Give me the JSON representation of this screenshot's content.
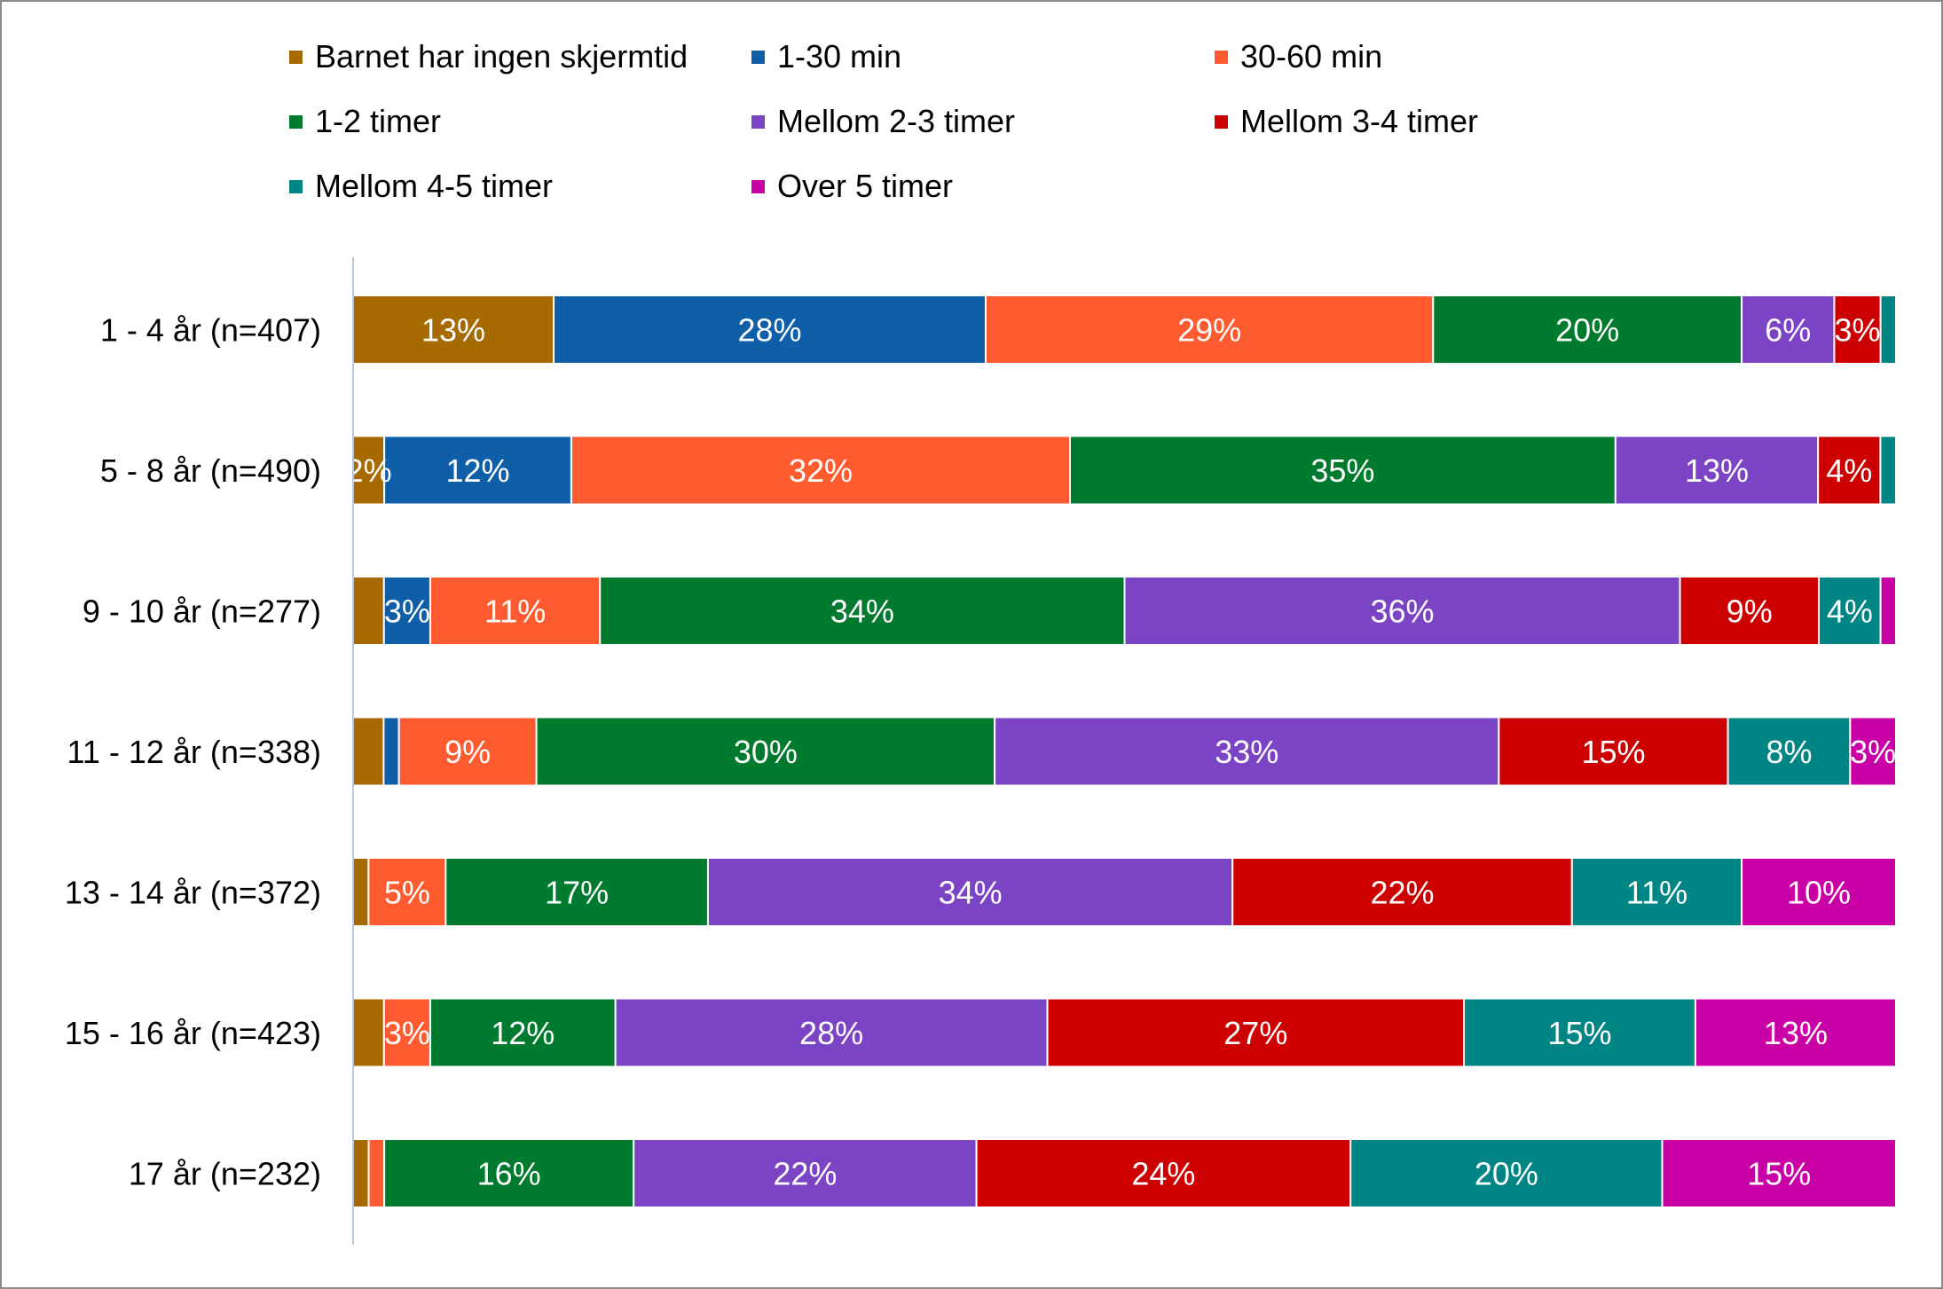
{
  "chart_data": {
    "type": "bar",
    "orientation": "horizontal",
    "stacked": true,
    "normalized": true,
    "xlim": [
      0,
      100
    ],
    "unit": "%",
    "legend_position": "top",
    "categories": [
      "1 - 4 år (n=407)",
      "5 - 8 år (n=490)",
      "9 - 10 år (n=277)",
      "11 - 12 år (n=338)",
      "13 - 14 år (n=372)",
      "15 - 16 år (n=423)",
      "17 år (n=232)"
    ],
    "series": [
      {
        "name": "Barnet har ingen skjermtid",
        "color": "#a66a00",
        "values": [
          13,
          2,
          2,
          2,
          1,
          2,
          1
        ],
        "labels": [
          "13%",
          "2%",
          "",
          "",
          "",
          "",
          ""
        ]
      },
      {
        "name": "1-30 min",
        "color": "#0f5ea8",
        "values": [
          28,
          12,
          3,
          1,
          0,
          0,
          0
        ],
        "labels": [
          "28%",
          "12%",
          "3%",
          "",
          "",
          "",
          ""
        ]
      },
      {
        "name": "30-60 min",
        "color": "#ff5b30",
        "values": [
          29,
          32,
          11,
          9,
          5,
          3,
          1
        ],
        "labels": [
          "29%",
          "32%",
          "11%",
          "9%",
          "5%",
          "3%",
          ""
        ]
      },
      {
        "name": "1-2 timer",
        "color": "#007a2e",
        "values": [
          20,
          35,
          34,
          30,
          17,
          12,
          16
        ],
        "labels": [
          "20%",
          "35%",
          "34%",
          "30%",
          "17%",
          "12%",
          "16%"
        ]
      },
      {
        "name": "Mellom 2-3 timer",
        "color": "#7b44c4",
        "values": [
          6,
          13,
          36,
          33,
          34,
          28,
          22
        ],
        "labels": [
          "6%",
          "13%",
          "36%",
          "33%",
          "34%",
          "28%",
          "22%"
        ]
      },
      {
        "name": "Mellom 3-4 timer",
        "color": "#cc0000",
        "values": [
          3,
          4,
          9,
          15,
          22,
          27,
          24
        ],
        "labels": [
          "3%",
          "4%",
          "9%",
          "15%",
          "22%",
          "27%",
          "24%"
        ]
      },
      {
        "name": "Mellom 4-5 timer",
        "color": "#008585",
        "values": [
          1,
          1,
          4,
          8,
          11,
          15,
          20
        ],
        "labels": [
          "",
          "",
          "4%",
          "8%",
          "11%",
          "15%",
          "20%"
        ]
      },
      {
        "name": "Over 5 timer",
        "color": "#c800a6",
        "values": [
          0,
          0,
          1,
          3,
          10,
          13,
          15
        ],
        "labels": [
          "",
          "",
          "",
          "3%",
          "10%",
          "13%",
          "15%"
        ]
      }
    ]
  }
}
